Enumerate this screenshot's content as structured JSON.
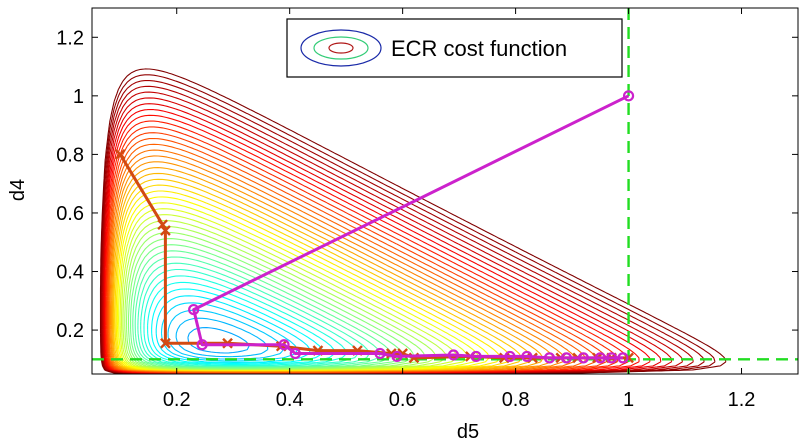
{
  "chart_data": {
    "type": "line",
    "title": "",
    "xlabel": "d5",
    "ylabel": "d4",
    "xlim": [
      0.05,
      1.3
    ],
    "ylim": [
      0.05,
      1.3
    ],
    "xticks": [
      0.2,
      0.4,
      0.6,
      0.8,
      1,
      1.2
    ],
    "yticks": [
      0.2,
      0.4,
      0.6,
      0.8,
      1,
      1.2
    ],
    "grid": false,
    "legend": {
      "placement": "top-center",
      "entries": [
        "ECR cost function"
      ]
    },
    "reference_lines": [
      {
        "orientation": "vertical",
        "value": 1.0,
        "color": "#22dd22",
        "style": "dashed"
      },
      {
        "orientation": "horizontal",
        "value": 0.1,
        "color": "#22dd22",
        "style": "dashed"
      }
    ],
    "contour": {
      "colormap": "jet",
      "minimum_near": [
        0.2,
        0.1
      ]
    },
    "series": [
      {
        "marker": "x",
        "color": "#d24a12",
        "x": [
          0.1,
          0.175,
          0.18,
          0.18,
          0.29,
          0.385,
          0.45,
          0.52,
          0.58,
          0.6,
          0.62,
          0.72,
          0.78,
          0.83,
          0.88,
          0.91,
          0.945,
          0.97,
          1.0
        ],
        "y": [
          0.8,
          0.56,
          0.54,
          0.155,
          0.155,
          0.145,
          0.13,
          0.13,
          0.12,
          0.12,
          0.105,
          0.11,
          0.105,
          0.105,
          0.105,
          0.105,
          0.105,
          0.105,
          0.105
        ]
      },
      {
        "marker": "o",
        "color": "#cc22cc",
        "x": [
          1.0,
          0.23,
          0.245,
          0.39,
          0.41,
          0.56,
          0.59,
          0.69,
          0.73,
          0.79,
          0.82,
          0.86,
          0.89,
          0.92,
          0.95,
          0.97,
          0.99
        ],
        "y": [
          1.0,
          0.27,
          0.15,
          0.15,
          0.12,
          0.12,
          0.11,
          0.115,
          0.11,
          0.11,
          0.11,
          0.105,
          0.105,
          0.105,
          0.105,
          0.105,
          0.105
        ]
      }
    ]
  }
}
